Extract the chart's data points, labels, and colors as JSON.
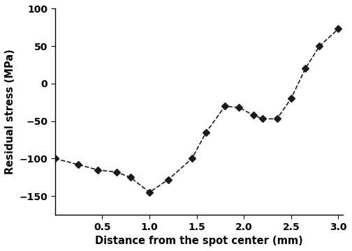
{
  "x": [
    0.0,
    0.25,
    0.45,
    0.65,
    0.8,
    1.0,
    1.2,
    1.45,
    1.6,
    1.8,
    1.95,
    2.1,
    2.2,
    2.35,
    2.5,
    2.65,
    2.8,
    3.0
  ],
  "y": [
    -100,
    -108,
    -115,
    -118,
    -125,
    -145,
    -128,
    -100,
    -65,
    -30,
    -32,
    -42,
    -47,
    -47,
    -20,
    20,
    50,
    73
  ],
  "line_color": "#1a1a1a",
  "marker": "D",
  "marker_size": 5.5,
  "line_style": "--",
  "line_width": 1.2,
  "xlabel": "Distance from the spot center (mm)",
  "ylabel": "Residual stress (MPa)",
  "xlim": [
    0.0,
    3.05
  ],
  "ylim": [
    -175,
    100
  ],
  "xticks": [
    0.5,
    1.0,
    1.5,
    2.0,
    2.5,
    3.0
  ],
  "yticks": [
    -150,
    -100,
    -50,
    0,
    50,
    100
  ],
  "xlabel_fontsize": 10.5,
  "ylabel_fontsize": 10.5,
  "tick_fontsize": 10,
  "background_color": "#ffffff"
}
